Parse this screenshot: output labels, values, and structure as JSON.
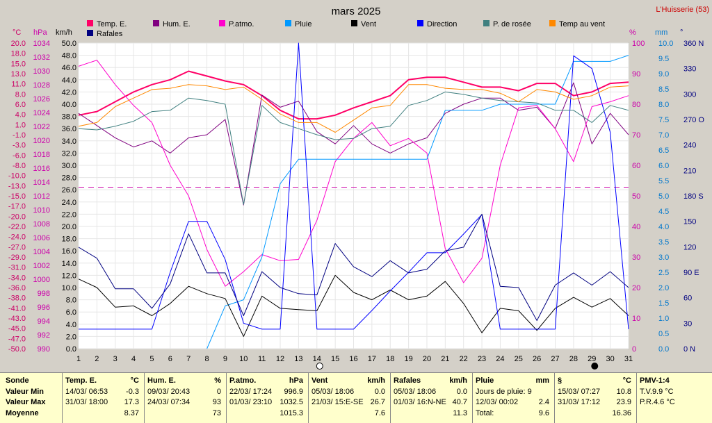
{
  "title": "mars 2025",
  "station": "L'Huisserie (53)",
  "legend": [
    {
      "label": "Temp. E.",
      "color": "#ff0066"
    },
    {
      "label": "Hum. E.",
      "color": "#800080"
    },
    {
      "label": "P.atmo.",
      "color": "#ff00cc"
    },
    {
      "label": "Pluie",
      "color": "#0099ff"
    },
    {
      "label": "Vent",
      "color": "#000000"
    },
    {
      "label": "Direction",
      "color": "#0000ff"
    },
    {
      "label": "P. de rosée",
      "color": "#408080"
    },
    {
      "label": "Temp au vent",
      "color": "#ff8800"
    },
    {
      "label": "Rafales",
      "color": "#000080"
    }
  ],
  "axis_units": {
    "temp": "°C",
    "pressure": "hPa",
    "wind": "km/h",
    "hum": "%",
    "rain": "mm",
    "dir": "°"
  },
  "chart_data": {
    "type": "line",
    "xlabel": "",
    "x": [
      1,
      2,
      3,
      4,
      5,
      6,
      7,
      8,
      9,
      10,
      11,
      12,
      13,
      14,
      15,
      16,
      17,
      18,
      19,
      20,
      21,
      22,
      23,
      24,
      25,
      26,
      27,
      28,
      29,
      30,
      31
    ],
    "x_ticks": [
      "1",
      "2",
      "3",
      "4",
      "5",
      "6",
      "7",
      "8",
      "9",
      "10",
      "11",
      "12",
      "13",
      "14",
      "15",
      "16",
      "17",
      "18",
      "19",
      "20",
      "21",
      "22",
      "23",
      "24",
      "25",
      "26",
      "27",
      "28",
      "29",
      "30",
      "31"
    ],
    "axes": {
      "temp": {
        "unit": "°C",
        "range": [
          -50,
          20
        ],
        "ticks": [
          "20.0",
          "18.0",
          "15.0",
          "13.0",
          "11.0",
          "8.0",
          "6.0",
          "4.0",
          "1.0",
          "-1.0",
          "-3.0",
          "-6.0",
          "-8.0",
          "-10.0",
          "-13.0",
          "-15.0",
          "-17.0",
          "-20.0",
          "-22.0",
          "-24.0",
          "-27.0",
          "-29.0",
          "-31.0",
          "-34.0",
          "-36.0",
          "-38.0",
          "-41.0",
          "-43.0",
          "-45.0",
          "-47.0",
          "-50.0"
        ]
      },
      "pressure": {
        "unit": "hPa",
        "range": [
          990,
          1034
        ],
        "ticks": [
          "1034",
          "1032",
          "1030",
          "1028",
          "1026",
          "1024",
          "1022",
          "1020",
          "1018",
          "1016",
          "1014",
          "1012",
          "1010",
          "1008",
          "1006",
          "1004",
          "1002",
          "1000",
          "998",
          "996",
          "994",
          "992",
          "990"
        ]
      },
      "wind": {
        "unit": "km/h",
        "range": [
          0,
          50
        ],
        "ticks": [
          "50.0",
          "48.0",
          "46.0",
          "44.0",
          "42.0",
          "40.0",
          "38.0",
          "36.0",
          "34.0",
          "32.0",
          "30.0",
          "28.0",
          "26.0",
          "24.0",
          "22.0",
          "20.0",
          "18.0",
          "16.0",
          "14.0",
          "12.0",
          "10.0",
          "8.0",
          "6.0",
          "4.0",
          "2.0",
          "0.0"
        ]
      },
      "hum": {
        "unit": "%",
        "range": [
          0,
          100
        ],
        "ticks": [
          "100",
          "90",
          "80",
          "70",
          "60",
          "50",
          "40",
          "30",
          "20",
          "10",
          "0"
        ]
      },
      "rain": {
        "unit": "mm",
        "range": [
          0,
          10
        ],
        "ticks": [
          "10.0",
          "9.5",
          "9.0",
          "8.5",
          "8.0",
          "7.5",
          "7.0",
          "6.5",
          "6.0",
          "5.5",
          "5.0",
          "4.5",
          "4.0",
          "3.5",
          "3.0",
          "2.5",
          "2.0",
          "1.5",
          "1.0",
          "0.5",
          "0.0"
        ]
      },
      "dir": {
        "unit": "°",
        "range": [
          0,
          360
        ],
        "ticks": [
          "360 N",
          "330",
          "300",
          "270 O",
          "240",
          "210",
          "180 S",
          "150",
          "120",
          "90 E",
          "60",
          "30",
          "0 N"
        ]
      }
    },
    "ref_line": {
      "axis": "pressure",
      "value": 1013.25
    },
    "series": [
      {
        "name": "Temp. E.",
        "axis": "wind",
        "color": "#ff0066",
        "width": 2,
        "values": [
          38.2,
          38.8,
          40.4,
          42.0,
          43.2,
          44.0,
          45.4,
          44.6,
          43.8,
          43.2,
          41.4,
          39.0,
          37.6,
          37.6,
          38.2,
          39.4,
          40.4,
          41.4,
          44.0,
          44.4,
          44.4,
          43.6,
          42.8,
          42.8,
          42.2,
          43.4,
          43.4,
          41.4,
          42.0,
          43.4,
          43.6
        ]
      },
      {
        "name": "Hum. E.",
        "axis": "hum",
        "color": "#800080",
        "width": 1,
        "values": [
          77,
          73,
          69,
          66,
          68,
          64,
          69,
          70,
          75,
          47,
          83,
          79,
          81,
          71,
          67,
          73,
          67,
          64,
          67,
          69,
          77,
          80,
          82,
          82,
          78,
          79,
          72,
          87,
          67,
          77,
          70
        ]
      },
      {
        "name": "P.atmo.",
        "axis": "wind",
        "color": "#ff00cc",
        "width": 1,
        "values": [
          46.2,
          47.2,
          43.2,
          39.8,
          37.0,
          30.0,
          25.0,
          16.2,
          10.2,
          12.6,
          15.4,
          14.4,
          14.6,
          21.0,
          30.6,
          34.4,
          37.0,
          33.2,
          34.4,
          32.0,
          16.4,
          10.8,
          14.8,
          30.0,
          39.4,
          39.8,
          36.0,
          30.6,
          39.6,
          40.4,
          41.4
        ]
      },
      {
        "name": "Pluie",
        "axis": "rain",
        "color": "#0099ff",
        "width": 1,
        "values": [
          null,
          null,
          null,
          null,
          null,
          null,
          null,
          0.0,
          1.4,
          1.6,
          3.0,
          5.4,
          6.2,
          6.2,
          6.2,
          6.2,
          6.2,
          6.2,
          6.2,
          6.2,
          7.8,
          7.8,
          7.8,
          8.0,
          8.0,
          8.0,
          8.0,
          9.4,
          9.4,
          9.4,
          9.6
        ]
      },
      {
        "name": "Vent",
        "axis": "wind",
        "color": "#000000",
        "width": 1,
        "values": [
          11.4,
          10.0,
          6.8,
          7.0,
          5.4,
          7.4,
          10.2,
          9.0,
          8.2,
          2.0,
          8.6,
          6.6,
          6.4,
          6.2,
          12.0,
          9.2,
          8.0,
          9.6,
          8.0,
          8.6,
          11.0,
          7.4,
          2.6,
          6.6,
          6.2,
          3.0,
          6.6,
          8.4,
          6.8,
          8.2,
          5.4
        ]
      },
      {
        "name": "Direction",
        "axis": "dir",
        "color": "#0000ff",
        "width": 1,
        "values": [
          23,
          23,
          23,
          23,
          23,
          90,
          150,
          150,
          105,
          30,
          23,
          23,
          360,
          23,
          23,
          23,
          45,
          68,
          90,
          113,
          113,
          135,
          158,
          23,
          23,
          23,
          23,
          345,
          330,
          255,
          23
        ]
      },
      {
        "name": "P. de rosée",
        "axis": "wind",
        "color": "#408080",
        "width": 1,
        "values": [
          36.0,
          35.8,
          36.4,
          37.2,
          38.8,
          39.0,
          41.0,
          40.6,
          40.0,
          23.6,
          39.8,
          37.0,
          36.0,
          35.0,
          34.2,
          34.4,
          36.0,
          36.4,
          39.8,
          40.6,
          42.0,
          41.6,
          41.0,
          40.6,
          40.4,
          40.2,
          39.0,
          39.0,
          37.0,
          39.8,
          39.0
        ]
      },
      {
        "name": "Temp au vent",
        "axis": "wind",
        "color": "#ff8800",
        "width": 1,
        "values": [
          36.4,
          37.0,
          39.6,
          41.0,
          42.4,
          42.6,
          43.2,
          43.0,
          42.4,
          42.8,
          40.8,
          38.4,
          37.0,
          37.0,
          35.4,
          37.4,
          39.4,
          39.8,
          43.2,
          43.2,
          42.6,
          42.4,
          42.4,
          41.8,
          40.4,
          42.4,
          42.0,
          40.8,
          41.4,
          42.8,
          43.0
        ]
      },
      {
        "name": "Rafales",
        "axis": "wind",
        "color": "#000080",
        "width": 1,
        "values": [
          16.6,
          14.8,
          9.8,
          9.8,
          6.6,
          10.6,
          18.8,
          12.4,
          12.4,
          5.4,
          12.6,
          10.0,
          9.0,
          8.8,
          17.2,
          13.4,
          11.8,
          14.4,
          12.4,
          13.0,
          16.0,
          16.6,
          22.0,
          10.2,
          10.0,
          4.6,
          10.4,
          12.4,
          10.4,
          12.6,
          10.0
        ]
      }
    ]
  },
  "footer": [
    {
      "hd": [
        "Sonde",
        ""
      ],
      "rows": [
        [
          "Valeur Min",
          ""
        ],
        [
          "Valeur Max",
          ""
        ],
        [
          "Moyenne",
          ""
        ]
      ]
    },
    {
      "hd": [
        "Temp. E.",
        "°C"
      ],
      "rows": [
        [
          "14/03/ 06:53",
          "-0.3"
        ],
        [
          "31/03/ 18:00",
          "17.3"
        ],
        [
          "",
          "8.37"
        ]
      ]
    },
    {
      "hd": [
        "Hum. E.",
        "%"
      ],
      "rows": [
        [
          "09/03/ 20:43",
          "0"
        ],
        [
          "24/03/ 07:34",
          "93"
        ],
        [
          "",
          "73"
        ]
      ]
    },
    {
      "hd": [
        "P.atmo.",
        "hPa"
      ],
      "rows": [
        [
          "22/03/ 17:24",
          "996.9"
        ],
        [
          "01/03/ 23:10",
          "1032.5"
        ],
        [
          "",
          "1015.3"
        ]
      ]
    },
    {
      "hd": [
        "Vent",
        "km/h"
      ],
      "rows": [
        [
          "05/03/ 18:06",
          "0.0"
        ],
        [
          "21/03/ 15:E-SE",
          "26.7"
        ],
        [
          "",
          "7.6"
        ]
      ]
    },
    {
      "hd": [
        "Rafales",
        "km/h"
      ],
      "rows": [
        [
          "05/03/ 18:06",
          "0.0"
        ],
        [
          "01/03/ 16:N-NE",
          "40.7"
        ],
        [
          "",
          "11.3"
        ]
      ]
    },
    {
      "hd": [
        "Pluie",
        "mm"
      ],
      "rows": [
        [
          "Jours de pluie: 9",
          ""
        ],
        [
          "12/03/ 00:02",
          "2.4"
        ],
        [
          "Total:",
          "9.6"
        ]
      ]
    },
    {
      "hd": [
        "§",
        "°C"
      ],
      "rows": [
        [
          "15/03/ 07:27",
          "10.8"
        ],
        [
          "31/03/ 17:12",
          "23.9"
        ],
        [
          "",
          "16.36"
        ]
      ]
    },
    {
      "hd": [
        "PMV-1:4",
        ""
      ],
      "rows": [
        [
          "T.V.9.9 °C",
          ""
        ],
        [
          "P.R.4.6 °C",
          ""
        ],
        [
          "",
          ""
        ]
      ]
    }
  ]
}
